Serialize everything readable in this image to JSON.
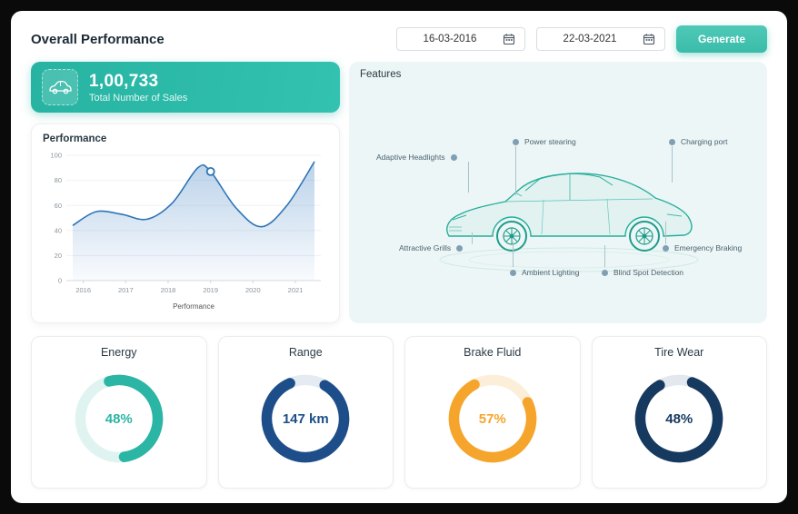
{
  "header": {
    "title": "Overall Performance",
    "date_from": "16-03-2016",
    "date_to": "22-03-2021",
    "generate_label": "Generate"
  },
  "sales": {
    "value": "1,00,733",
    "label": "Total Number of Sales"
  },
  "performance_card": {
    "title": "Performance"
  },
  "features": {
    "title": "Features",
    "items": [
      {
        "label": "Adaptive Headlights"
      },
      {
        "label": "Power stearing"
      },
      {
        "label": "Charging port"
      },
      {
        "label": "Attractive Grills"
      },
      {
        "label": "Ambient Lighting"
      },
      {
        "label": "Blind Spot Detection"
      },
      {
        "label": "Emergency Braking"
      }
    ]
  },
  "gauges": [
    {
      "label": "Energy",
      "value": "48%",
      "color": "#2ab5a5",
      "track": "#dff4f1",
      "arc": 0.52,
      "start": -105
    },
    {
      "label": "Range",
      "value": "147 km",
      "color": "#1d4e89",
      "track": "#e4ebf3",
      "arc": 0.85,
      "start": -60
    },
    {
      "label": "Brake Fluid",
      "value": "57%",
      "color": "#f5a52c",
      "track": "#fcefda",
      "arc": 0.74,
      "start": -25
    },
    {
      "label": "Tire Wear",
      "value": "48%",
      "color": "#16395f",
      "track": "#e3e8ee",
      "arc": 0.86,
      "start": -70
    }
  ],
  "colors": {
    "accent_teal": "#2bb9a8",
    "chart_line": "#2e75b6",
    "chart_fill": "#3d7fc1",
    "car_stroke": "#27ae9b"
  },
  "chart_data": {
    "type": "area",
    "title": "Performance",
    "xlabel": "Performance",
    "ylabel": "",
    "ylim": [
      0,
      100
    ],
    "xrange": [
      2015.6,
      2021.6
    ],
    "yticks": [
      0,
      20,
      40,
      60,
      80,
      100
    ],
    "xticks": [
      2016,
      2017,
      2018,
      2019,
      2020,
      2021
    ],
    "series": [
      {
        "name": "Performance",
        "x": [
          2015.75,
          2016.3,
          2016.9,
          2017.5,
          2018.1,
          2018.7,
          2019.0,
          2019.6,
          2020.2,
          2020.8,
          2021.45
        ],
        "y": [
          44,
          55,
          53,
          49,
          62,
          90,
          87,
          58,
          43,
          60,
          95
        ]
      }
    ],
    "marker": {
      "x": 2019,
      "y": 87
    },
    "grid": true,
    "legend": "none"
  }
}
